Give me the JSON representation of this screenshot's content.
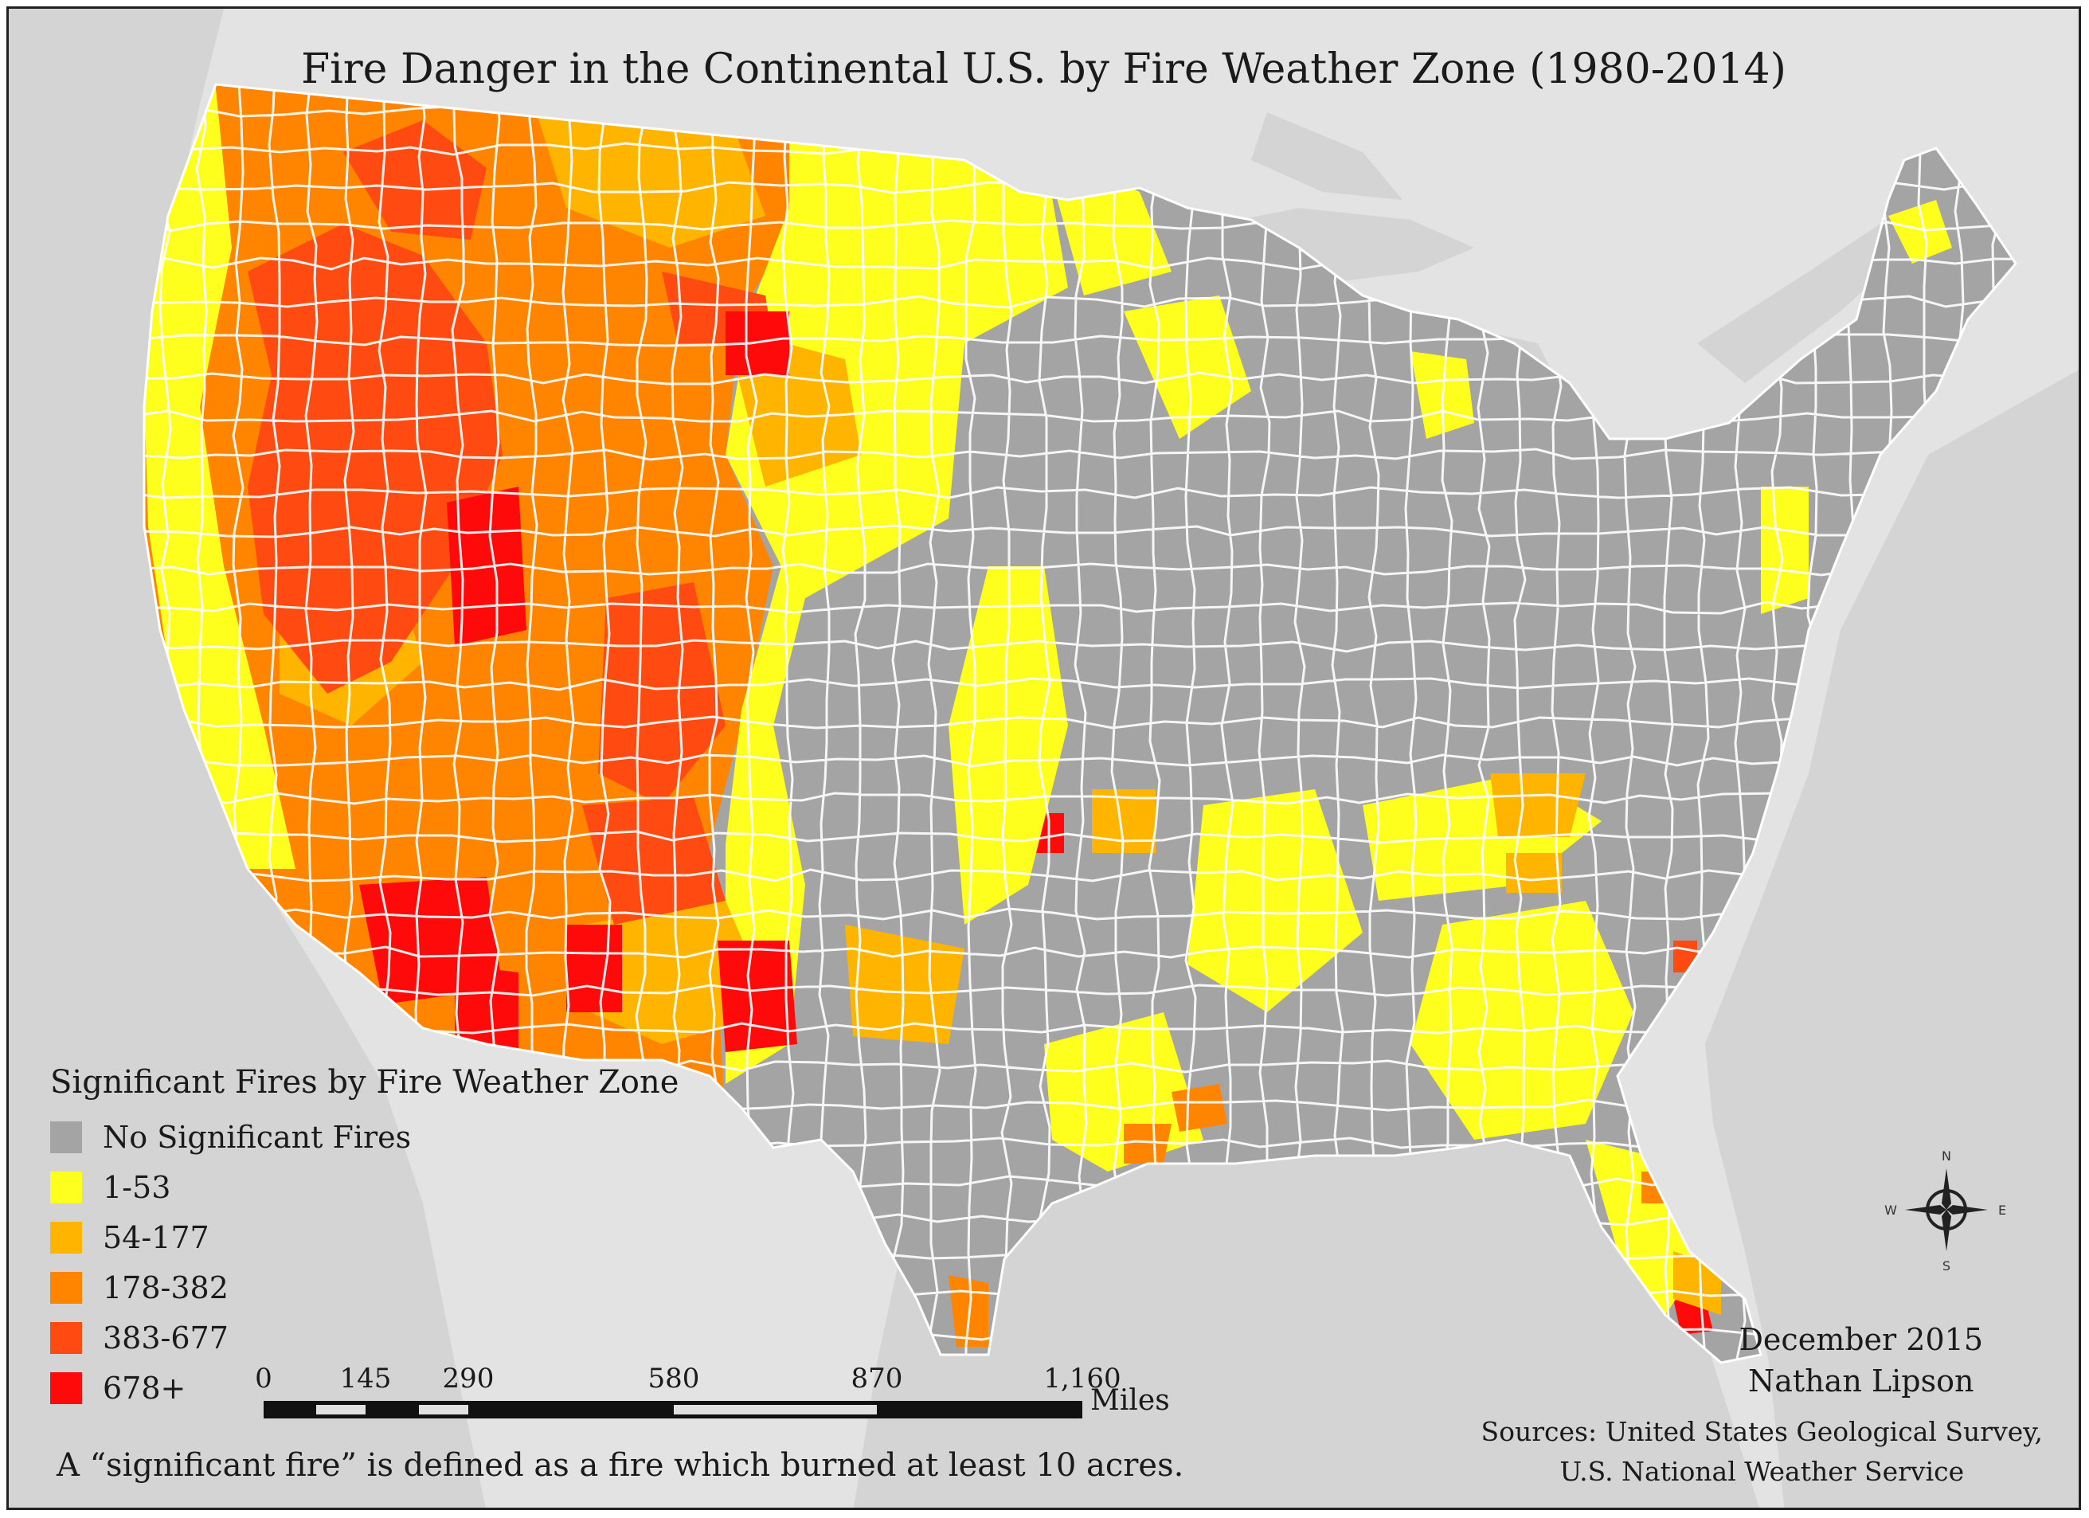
{
  "title": "Fire Danger in the Continental U.S. by Fire Weather Zone (1980-2014)",
  "legend": {
    "title": "Significant Fires by Fire Weather Zone",
    "items": [
      {
        "label": "No Significant Fires",
        "color": "#a4a4a4"
      },
      {
        "label": "1-53",
        "color": "#ffff1e"
      },
      {
        "label": "54-177",
        "color": "#ffb400"
      },
      {
        "label": "178-382",
        "color": "#ff8400"
      },
      {
        "label": "383-677",
        "color": "#ff4b12"
      },
      {
        "label": "678+",
        "color": "#ff0a0a"
      }
    ]
  },
  "scale_bar": {
    "ticks": [
      "0",
      "145",
      "290",
      "580",
      "870",
      "1,160"
    ],
    "unit": "Miles"
  },
  "compass": {
    "n": "N",
    "s": "S",
    "e": "E",
    "w": "W"
  },
  "footnote": "A “significant fire” is defined as a fire which burned at least 10 acres.",
  "credit": {
    "date": "December 2015",
    "author": "Nathan Lipson"
  },
  "sources": {
    "line1": "Sources: United States Geological Survey,",
    "line2": "U.S. National Weather Service"
  },
  "colors": {
    "background_land": "#e3e3e3",
    "water": "#d2d2d2",
    "zone_border": "#ffffff"
  }
}
